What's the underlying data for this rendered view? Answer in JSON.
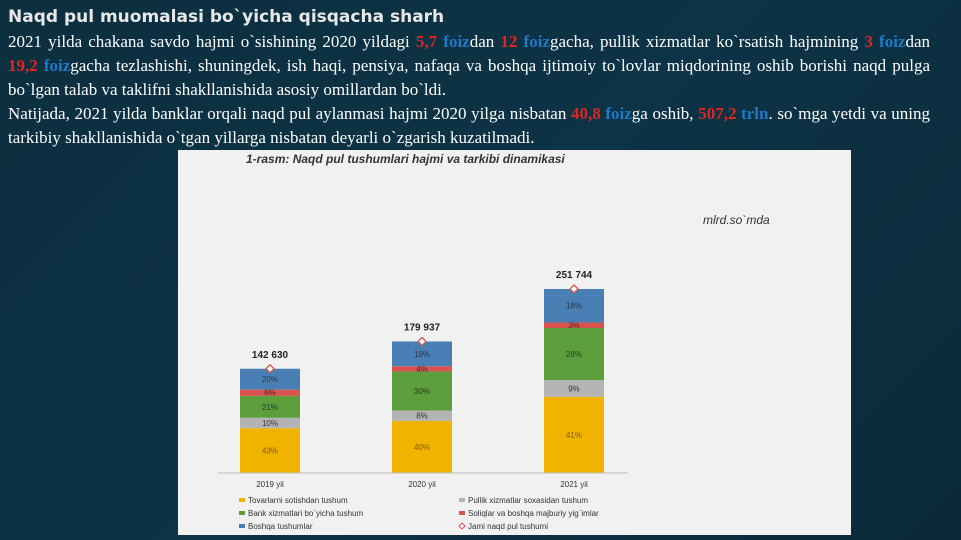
{
  "header": {
    "title": "Naqd pul muomalasi bo`yicha qisqacha sharh"
  },
  "paragraphs": [
    {
      "segments": [
        {
          "text": "2021 yilda chakana savdo hajmi o`sishining 2020 yildagi ",
          "style": "plain"
        },
        {
          "text": "5,7",
          "style": "red"
        },
        {
          "text": " foiz",
          "style": "blue"
        },
        {
          "text": "dan ",
          "style": "plain"
        },
        {
          "text": "12",
          "style": "red"
        },
        {
          "text": " foiz",
          "style": "blue"
        },
        {
          "text": "gacha, pullik xizmatlar ko`rsatish hajmining ",
          "style": "plain"
        },
        {
          "text": "3",
          "style": "red"
        },
        {
          "text": " foiz",
          "style": "blue"
        },
        {
          "text": "dan ",
          "style": "plain"
        },
        {
          "text": "19,2",
          "style": "red"
        },
        {
          "text": " foiz",
          "style": "blue"
        },
        {
          "text": "gacha tezlashishi, shuningdek, ish haqi, pensiya, nafaqa va boshqa ijtimoiy to`lovlar miqdorining oshib borishi naqd pulga bo`lgan talab va taklifni shakllanishida asosiy omillardan bo`ldi.",
          "style": "plain"
        }
      ]
    },
    {
      "segments": [
        {
          "text": "Natijada, 2021 yilda banklar orqali naqd pul aylanmasi hajmi 2020 yilga nisbatan ",
          "style": "plain"
        },
        {
          "text": "40,8",
          "style": "red"
        },
        {
          "text": " foiz",
          "style": "blue"
        },
        {
          "text": "ga oshib, ",
          "style": "plain"
        },
        {
          "text": "507,2",
          "style": "red"
        },
        {
          "text": " trln",
          "style": "blue"
        },
        {
          "text": ". so`mga yetdi va uning tarkibiy shakllanishida o`tgan yillarga nisbatan deyarli o`zgarish kuzatilmadi.",
          "style": "plain"
        }
      ]
    }
  ],
  "chart": {
    "type": "stacked_bar",
    "title": "1-rasm: Naqd pul tushumlari hajmi va tarkibi dinamikasi",
    "unit": "mlrd.so`mda",
    "categories": [
      "2019 yil",
      "2020 yil",
      "2021 yil"
    ],
    "series": [
      {
        "name": "Tovarlarni sotishdan tushum",
        "color": "#f0b400",
        "values": [
          43,
          40,
          41
        ],
        "value_labels": [
          "43%",
          "40%",
          "41%"
        ]
      },
      {
        "name": "Pullik xizmatlar soxasidan tushum",
        "color": "#b4b4b4",
        "values": [
          10,
          8,
          9
        ],
        "value_labels": [
          "10%",
          "8%",
          "9%"
        ]
      },
      {
        "name": "Bank xizmatlari bo`yicha tushum",
        "color": "#5c9e3c",
        "values": [
          21,
          30,
          28
        ],
        "value_labels": [
          "21%",
          "30%",
          "28%"
        ]
      },
      {
        "name": "Soliqlar va boshqa majburiy yig`imlar",
        "color": "#d9534f",
        "values": [
          6,
          4,
          3
        ],
        "value_labels": [
          "6%",
          "4%",
          "3%"
        ]
      },
      {
        "name": "Boshqa tushumlar",
        "color": "#4a7fb5",
        "values": [
          20,
          19,
          18
        ],
        "value_labels": [
          "20%",
          "19%",
          "18%"
        ]
      }
    ],
    "totals": {
      "name": "Jami naqd pul tushumi",
      "color": "#d9534f",
      "values": [
        142630,
        179937,
        251744
      ],
      "value_labels": [
        "142 630",
        "179 937",
        "251 744"
      ]
    }
  }
}
